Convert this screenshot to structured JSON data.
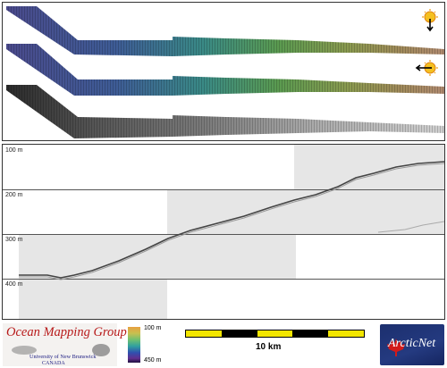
{
  "profile": {
    "depth_labels": [
      "100 m",
      "200 m",
      "300 m",
      "400 m"
    ]
  },
  "legend": {
    "min_label": "100 m",
    "max_label": "450 m"
  },
  "scalebar": {
    "label": "10 km",
    "colors": [
      "#f3e600",
      "#000000"
    ]
  },
  "logos": {
    "omg_title": "Ocean Mapping Group",
    "omg_university": "University of New Brunswick",
    "omg_country": "CANADA",
    "arcticnet": "ArcticNet"
  },
  "icons": [
    "sun-south-icon",
    "sun-west-icon",
    "maple-leaf-icon"
  ],
  "colors": {
    "omg_red": "#b81a1a",
    "arctic_blue": "#1c2f6e"
  }
}
